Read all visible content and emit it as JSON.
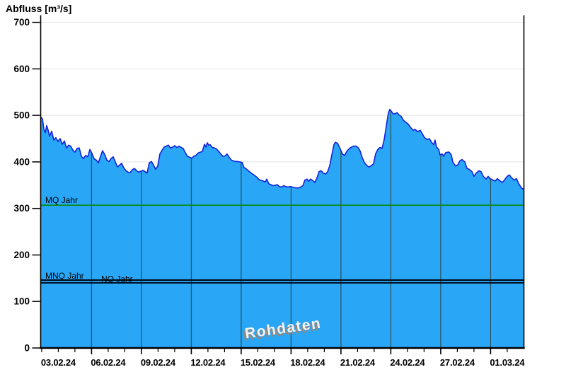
{
  "title": "Abfluss [m³/s]",
  "watermark": "Rohdaten",
  "colors": {
    "area_fill": "#29a6f6",
    "area_edge": "#1322dd",
    "mq_line": "#0a8a1e",
    "mnq_nq_line": "#000a18",
    "v_grid": "#2e5560",
    "h_grid": "#e4e4e4",
    "axis": "#000000",
    "tick_label": "#000000",
    "watermark_fill": "#f2f2f2",
    "watermark_shadow": "#8a8a8a"
  },
  "chart_data": {
    "type": "area",
    "title": "Abfluss [m³/s]",
    "ylabel": "Abfluss [m³/s]",
    "unit": "m³/s",
    "ylim": [
      0,
      700
    ],
    "y_ticks": [
      0,
      100,
      200,
      300,
      400,
      500,
      600,
      700
    ],
    "grid": "light horizontal gridlines every 100; dark vertical gridlines every 3 days clipped to filled area",
    "legend": "none",
    "x_axis": {
      "span_days": 29.05,
      "minor_tick_every_days": 1,
      "tick_labels": [
        "03.02.24",
        "06.02.24",
        "09.02.24",
        "12.02.24",
        "15.02.24",
        "18.02.24",
        "21.02.24",
        "24.02.24",
        "27.02.24",
        "01.03.24"
      ],
      "label_positions_days": [
        1.06,
        4.06,
        7.06,
        10.06,
        13.06,
        16.06,
        19.06,
        22.06,
        25.06,
        28.06
      ],
      "gridline_positions_days": [
        3.06,
        6.06,
        9.06,
        12.06,
        15.06,
        18.06,
        21.06,
        24.06,
        27.06
      ]
    },
    "reference_lines": [
      {
        "label": "MQ Jahr",
        "value": 307
      },
      {
        "label": "MNQ Jahr",
        "value": 146
      },
      {
        "label": "NQ Jahr",
        "value": 140
      }
    ],
    "series": [
      {
        "name": "Rohdaten",
        "points": [
          [
            0,
            497
          ],
          [
            0.11,
            492
          ],
          [
            0.19,
            470
          ],
          [
            0.28,
            463
          ],
          [
            0.36,
            478
          ],
          [
            0.45,
            468
          ],
          [
            0.53,
            455
          ],
          [
            0.66,
            466
          ],
          [
            0.79,
            447
          ],
          [
            0.91,
            452
          ],
          [
            1.04,
            444
          ],
          [
            1.17,
            450
          ],
          [
            1.3,
            438
          ],
          [
            1.43,
            445
          ],
          [
            1.55,
            430
          ],
          [
            1.68,
            436
          ],
          [
            1.81,
            434
          ],
          [
            1.94,
            425
          ],
          [
            2.06,
            421
          ],
          [
            2.19,
            429
          ],
          [
            2.32,
            430
          ],
          [
            2.45,
            412
          ],
          [
            2.57,
            407
          ],
          [
            2.7,
            414
          ],
          [
            2.83,
            411
          ],
          [
            2.96,
            427
          ],
          [
            3.09,
            418
          ],
          [
            3.21,
            407
          ],
          [
            3.34,
            404
          ],
          [
            3.47,
            398
          ],
          [
            3.6,
            412
          ],
          [
            3.72,
            424
          ],
          [
            3.85,
            416
          ],
          [
            3.98,
            404
          ],
          [
            4.11,
            401
          ],
          [
            4.23,
            407
          ],
          [
            4.36,
            411
          ],
          [
            4.49,
            400
          ],
          [
            4.62,
            389
          ],
          [
            4.74,
            393
          ],
          [
            4.87,
            397
          ],
          [
            5,
            387
          ],
          [
            5.13,
            381
          ],
          [
            5.26,
            378
          ],
          [
            5.38,
            377
          ],
          [
            5.51,
            383
          ],
          [
            5.64,
            386
          ],
          [
            5.77,
            381
          ],
          [
            5.89,
            378
          ],
          [
            6.02,
            380
          ],
          [
            6.15,
            382
          ],
          [
            6.28,
            379
          ],
          [
            6.4,
            376
          ],
          [
            6.53,
            398
          ],
          [
            6.66,
            401
          ],
          [
            6.79,
            393
          ],
          [
            6.91,
            384
          ],
          [
            7.04,
            391
          ],
          [
            7.17,
            417
          ],
          [
            7.3,
            425
          ],
          [
            7.43,
            432
          ],
          [
            7.55,
            434
          ],
          [
            7.68,
            436
          ],
          [
            7.81,
            430
          ],
          [
            7.94,
            432
          ],
          [
            8.06,
            435
          ],
          [
            8.19,
            431
          ],
          [
            8.32,
            434
          ],
          [
            8.45,
            431
          ],
          [
            8.57,
            429
          ],
          [
            8.7,
            420
          ],
          [
            8.83,
            412
          ],
          [
            8.96,
            410
          ],
          [
            9.09,
            408
          ],
          [
            9.21,
            412
          ],
          [
            9.34,
            414
          ],
          [
            9.47,
            419
          ],
          [
            9.6,
            421
          ],
          [
            9.72,
            422
          ],
          [
            9.85,
            438
          ],
          [
            9.94,
            432
          ],
          [
            10.02,
            441
          ],
          [
            10.11,
            436
          ],
          [
            10.19,
            437
          ],
          [
            10.32,
            431
          ],
          [
            10.45,
            430
          ],
          [
            10.57,
            428
          ],
          [
            10.7,
            423
          ],
          [
            10.83,
            417
          ],
          [
            10.96,
            412
          ],
          [
            11.09,
            413
          ],
          [
            11.21,
            417
          ],
          [
            11.34,
            410
          ],
          [
            11.47,
            404
          ],
          [
            11.6,
            402
          ],
          [
            11.72,
            401
          ],
          [
            11.85,
            401
          ],
          [
            11.98,
            400
          ],
          [
            12.11,
            399
          ],
          [
            12.23,
            388
          ],
          [
            12.36,
            385
          ],
          [
            12.49,
            381
          ],
          [
            12.62,
            377
          ],
          [
            12.74,
            374
          ],
          [
            12.87,
            371
          ],
          [
            13,
            367
          ],
          [
            13.13,
            362
          ],
          [
            13.26,
            360
          ],
          [
            13.38,
            359
          ],
          [
            13.51,
            357
          ],
          [
            13.6,
            363
          ],
          [
            13.72,
            353
          ],
          [
            13.85,
            351
          ],
          [
            13.98,
            349
          ],
          [
            14.11,
            350
          ],
          [
            14.23,
            351
          ],
          [
            14.36,
            347
          ],
          [
            14.49,
            346
          ],
          [
            14.62,
            349
          ],
          [
            14.74,
            347
          ],
          [
            14.87,
            346
          ],
          [
            15,
            347
          ],
          [
            15.13,
            346
          ],
          [
            15.26,
            345
          ],
          [
            15.38,
            344
          ],
          [
            15.51,
            344
          ],
          [
            15.64,
            346
          ],
          [
            15.77,
            349
          ],
          [
            15.89,
            361
          ],
          [
            16.02,
            363
          ],
          [
            16.11,
            358
          ],
          [
            16.23,
            363
          ],
          [
            16.36,
            360
          ],
          [
            16.49,
            356
          ],
          [
            16.62,
            366
          ],
          [
            16.74,
            379
          ],
          [
            16.87,
            381
          ],
          [
            17,
            376
          ],
          [
            17.13,
            374
          ],
          [
            17.26,
            379
          ],
          [
            17.38,
            391
          ],
          [
            17.51,
            415
          ],
          [
            17.64,
            437
          ],
          [
            17.72,
            442
          ],
          [
            17.85,
            440
          ],
          [
            17.98,
            431
          ],
          [
            18.15,
            417
          ],
          [
            18.28,
            414
          ],
          [
            18.4,
            422
          ],
          [
            18.57,
            429
          ],
          [
            18.7,
            432
          ],
          [
            18.83,
            434
          ],
          [
            18.96,
            434
          ],
          [
            19.09,
            431
          ],
          [
            19.21,
            424
          ],
          [
            19.34,
            409
          ],
          [
            19.47,
            399
          ],
          [
            19.6,
            393
          ],
          [
            19.72,
            389
          ],
          [
            19.85,
            391
          ],
          [
            20.02,
            396
          ],
          [
            20.15,
            418
          ],
          [
            20.28,
            427
          ],
          [
            20.4,
            431
          ],
          [
            20.53,
            429
          ],
          [
            20.66,
            448
          ],
          [
            20.79,
            478
          ],
          [
            20.91,
            505
          ],
          [
            21,
            513
          ],
          [
            21.09,
            509
          ],
          [
            21.21,
            503
          ],
          [
            21.34,
            504
          ],
          [
            21.43,
            506
          ],
          [
            21.55,
            501
          ],
          [
            21.68,
            498
          ],
          [
            21.81,
            490
          ],
          [
            21.94,
            486
          ],
          [
            22.11,
            481
          ],
          [
            22.23,
            475
          ],
          [
            22.4,
            468
          ],
          [
            22.53,
            470
          ],
          [
            22.66,
            465
          ],
          [
            22.83,
            468
          ],
          [
            22.96,
            460
          ],
          [
            23.09,
            452
          ],
          [
            23.26,
            448
          ],
          [
            23.38,
            450
          ],
          [
            23.51,
            442
          ],
          [
            23.64,
            437
          ],
          [
            23.72,
            447
          ],
          [
            23.81,
            432
          ],
          [
            23.94,
            427
          ],
          [
            24.02,
            415
          ],
          [
            24.15,
            417
          ],
          [
            24.23,
            412
          ],
          [
            24.36,
            420
          ],
          [
            24.49,
            421
          ],
          [
            24.57,
            421
          ],
          [
            24.7,
            415
          ],
          [
            24.79,
            399
          ],
          [
            24.96,
            391
          ],
          [
            25.09,
            394
          ],
          [
            25.21,
            402
          ],
          [
            25.34,
            405
          ],
          [
            25.51,
            400
          ],
          [
            25.64,
            386
          ],
          [
            25.77,
            384
          ],
          [
            25.94,
            379
          ],
          [
            26.06,
            369
          ],
          [
            26.19,
            376
          ],
          [
            26.36,
            381
          ],
          [
            26.49,
            379
          ],
          [
            26.62,
            369
          ],
          [
            26.79,
            363
          ],
          [
            26.91,
            369
          ],
          [
            27.04,
            364
          ],
          [
            27.21,
            361
          ],
          [
            27.34,
            359
          ],
          [
            27.47,
            364
          ],
          [
            27.64,
            359
          ],
          [
            27.77,
            356
          ],
          [
            27.89,
            361
          ],
          [
            28.06,
            369
          ],
          [
            28.19,
            372
          ],
          [
            28.32,
            366
          ],
          [
            28.49,
            361
          ],
          [
            28.62,
            364
          ],
          [
            28.74,
            354
          ],
          [
            28.91,
            344
          ],
          [
            29.04,
            341
          ]
        ]
      }
    ]
  }
}
